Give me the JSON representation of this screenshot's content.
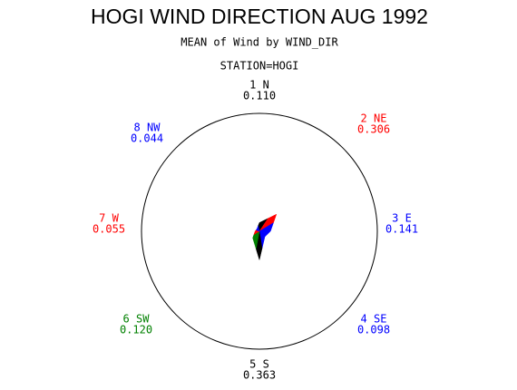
{
  "chart_data": {
    "type": "star",
    "title": "HOGI WIND DIRECTION AUG 1992",
    "subtitle": "MEAN of Wind by WIND_DIR",
    "station": "STATION=HOGI",
    "categories": [
      "1 N",
      "2 NE",
      "3 E",
      "4 SE",
      "5 S",
      "6 SW",
      "7 W",
      "8 NW"
    ],
    "values": [
      0.11,
      0.306,
      0.141,
      0.098,
      0.363,
      0.12,
      0.055,
      0.044
    ],
    "value_labels": [
      "0.110",
      "0.306",
      "0.141",
      "0.098",
      "0.363",
      "0.120",
      "0.055",
      "0.044"
    ],
    "colors": [
      "#000000",
      "#ff0000",
      "#0000ff",
      "#0000ff",
      "#000000",
      "#008000",
      "#ff0000",
      "#0000ff"
    ],
    "rlim": [
      0,
      1.5
    ]
  }
}
